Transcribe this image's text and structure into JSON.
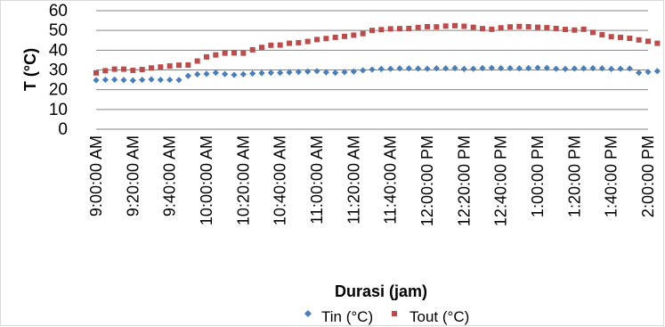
{
  "chart_data": {
    "type": "scatter",
    "ylabel": "T (°C)",
    "xlabel": "Durasi (jam)",
    "ylim": [
      0,
      60
    ],
    "yticks": [
      "60",
      "50",
      "40",
      "30",
      "20",
      "10",
      "0"
    ],
    "x_tick_labels": [
      "9:00:00 AM",
      "9:20:00 AM",
      "9:40:00 AM",
      "10:00:00 AM",
      "10:20:00 AM",
      "10:40:00 AM",
      "11:00:00 AM",
      "11:20:00 AM",
      "11:40:00 AM",
      "12:00:00 PM",
      "12:20:00 PM",
      "12:40:00 PM",
      "1:00:00 PM",
      "1:20:00 PM",
      "1:40:00 PM",
      "2:00:00 PM"
    ],
    "x_start": "9:00:00 AM",
    "x_step_minutes": 5,
    "grid": true,
    "legend_position": "bottom",
    "series": [
      {
        "name": "Tin (°C)",
        "color": "#4a7ebb",
        "marker": "diamond",
        "values": [
          24.8,
          25.0,
          25.1,
          24.9,
          24.7,
          25.0,
          25.2,
          25.0,
          25.0,
          24.9,
          27.0,
          27.8,
          28.0,
          28.6,
          27.9,
          27.5,
          27.8,
          28.2,
          28.4,
          28.6,
          28.6,
          28.8,
          29.0,
          29.2,
          29.4,
          28.8,
          28.6,
          28.9,
          29.2,
          29.8,
          30.2,
          30.5,
          30.6,
          30.8,
          30.8,
          30.7,
          30.6,
          30.8,
          30.8,
          30.9,
          30.5,
          30.6,
          30.9,
          31.0,
          30.9,
          30.9,
          30.8,
          30.9,
          31.1,
          31.0,
          30.6,
          30.5,
          30.7,
          30.8,
          30.9,
          30.8,
          30.5,
          30.6,
          30.7,
          28.6,
          29.0,
          29.4
        ]
      },
      {
        "name": "Tout (°C)",
        "color": "#be4b48",
        "marker": "square",
        "values": [
          28.5,
          29.6,
          30.4,
          30.4,
          29.8,
          30.2,
          31.0,
          31.5,
          32.0,
          32.4,
          32.5,
          34.5,
          36.6,
          37.6,
          38.5,
          38.6,
          38.5,
          40.2,
          41.4,
          42.5,
          42.6,
          43.5,
          43.8,
          44.4,
          45.4,
          45.9,
          46.5,
          47.0,
          47.6,
          48.4,
          50.0,
          50.4,
          50.8,
          50.9,
          51.0,
          51.5,
          51.9,
          51.8,
          52.2,
          52.4,
          52.1,
          51.6,
          50.9,
          50.6,
          51.3,
          51.8,
          52.0,
          51.9,
          51.6,
          51.4,
          51.0,
          50.5,
          50.2,
          50.6,
          49.0,
          47.8,
          46.8,
          46.5,
          46.0,
          45.2,
          44.5,
          43.5
        ]
      }
    ]
  }
}
